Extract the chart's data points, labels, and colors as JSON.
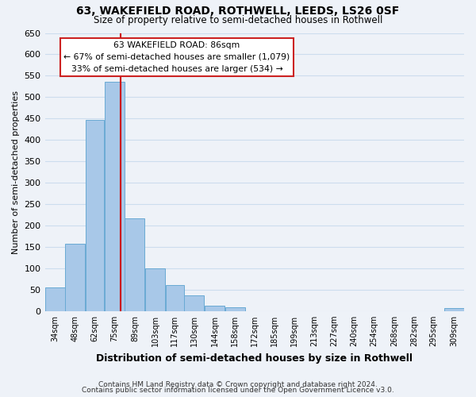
{
  "title": "63, WAKEFIELD ROAD, ROTHWELL, LEEDS, LS26 0SF",
  "subtitle": "Size of property relative to semi-detached houses in Rothwell",
  "xlabel": "Distribution of semi-detached houses by size in Rothwell",
  "ylabel": "Number of semi-detached properties",
  "footer_line1": "Contains HM Land Registry data © Crown copyright and database right 2024.",
  "footer_line2": "Contains public sector information licensed under the Open Government Licence v3.0.",
  "bin_labels": [
    "34sqm",
    "48sqm",
    "62sqm",
    "75sqm",
    "89sqm",
    "103sqm",
    "117sqm",
    "130sqm",
    "144sqm",
    "158sqm",
    "172sqm",
    "185sqm",
    "199sqm",
    "213sqm",
    "227sqm",
    "240sqm",
    "254sqm",
    "268sqm",
    "282sqm",
    "295sqm",
    "309sqm"
  ],
  "bin_edges": [
    34,
    48,
    62,
    75,
    89,
    103,
    117,
    130,
    144,
    158,
    172,
    185,
    199,
    213,
    227,
    240,
    254,
    268,
    282,
    295,
    309,
    323
  ],
  "bar_heights": [
    55,
    157,
    447,
    535,
    217,
    99,
    60,
    36,
    12,
    8,
    0,
    0,
    0,
    0,
    0,
    0,
    0,
    0,
    0,
    0,
    7
  ],
  "bar_color": "#a8c8e8",
  "bar_edge_color": "#6aaad4",
  "property_line_x": 86,
  "vline_color": "#cc0000",
  "annotation_title": "63 WAKEFIELD ROAD: 86sqm",
  "annotation_line1": "← 67% of semi-detached houses are smaller (1,079)",
  "annotation_line2": "33% of semi-detached houses are larger (534) →",
  "ylim": [
    0,
    650
  ],
  "yticks": [
    0,
    50,
    100,
    150,
    200,
    250,
    300,
    350,
    400,
    450,
    500,
    550,
    600,
    650
  ],
  "grid_color": "#ccddee",
  "background_color": "#eef2f8"
}
